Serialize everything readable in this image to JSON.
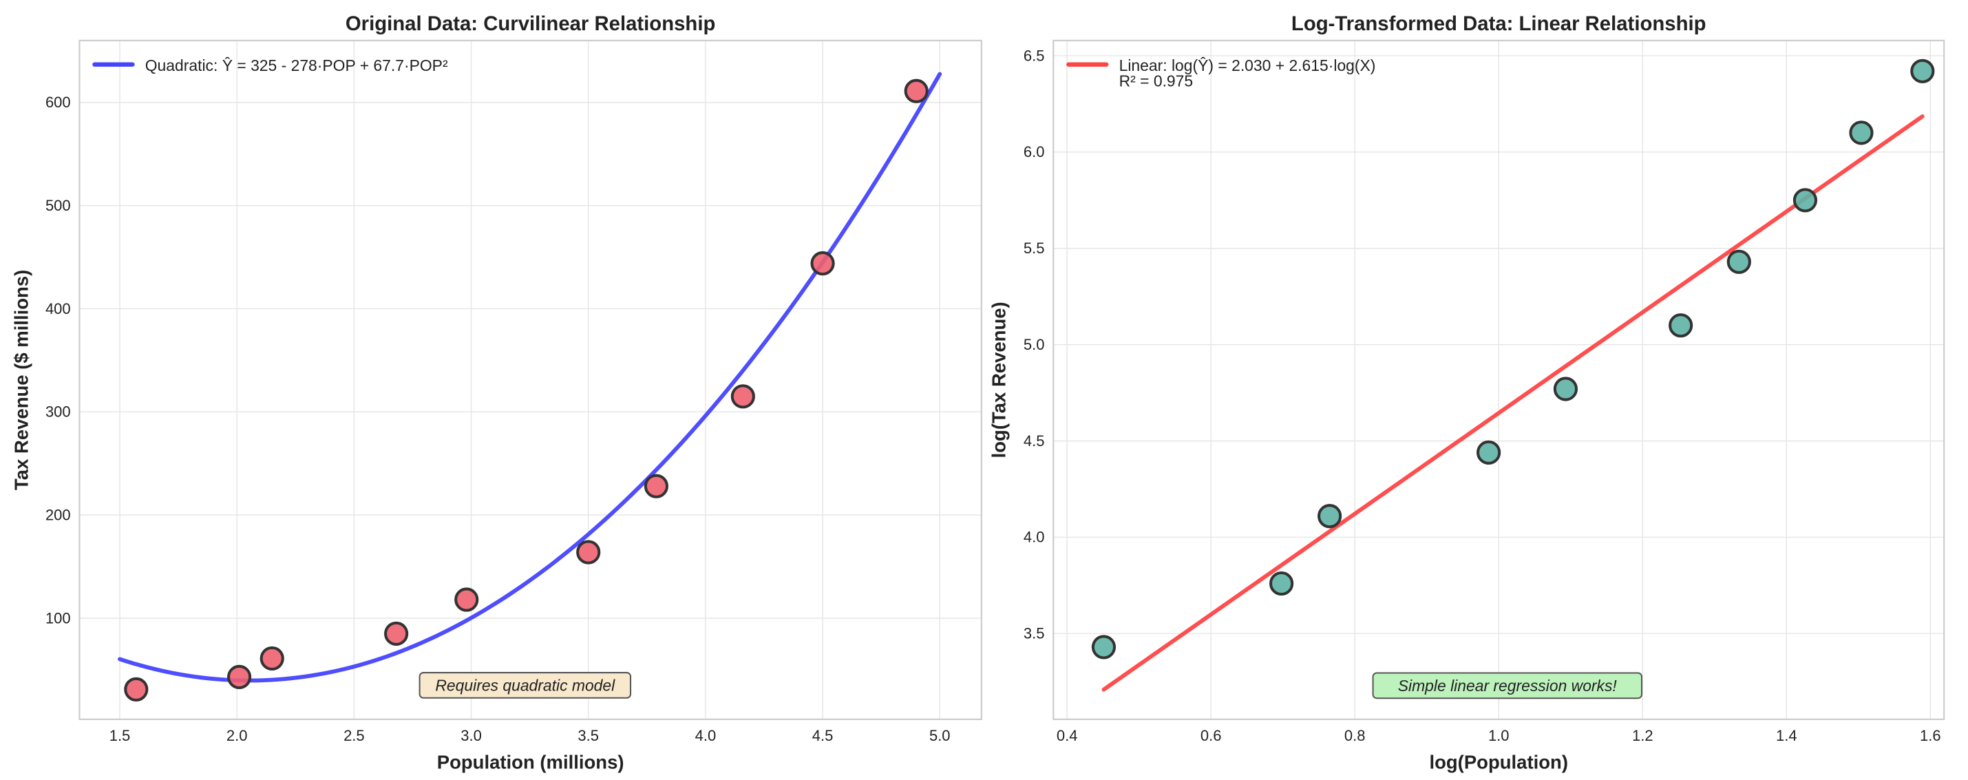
{
  "chart_data": [
    {
      "type": "scatter",
      "title": "Original Data: Curvilinear Relationship",
      "xlabel": "Population (millions)",
      "ylabel": "Tax Revenue ($ millions)",
      "xlim": [
        1.328,
        5.178
      ],
      "ylim": [
        2,
        660
      ],
      "xticks": [
        1.5,
        2.0,
        2.5,
        3.0,
        3.5,
        4.0,
        4.5,
        5.0
      ],
      "xtick_labels": [
        "1.5",
        "2.0",
        "2.5",
        "3.0",
        "3.5",
        "4.0",
        "4.5",
        "5.0"
      ],
      "yticks": [
        100,
        200,
        300,
        400,
        500,
        600
      ],
      "ytick_labels": [
        "100",
        "200",
        "300",
        "400",
        "500",
        "600"
      ],
      "grid": true,
      "points": {
        "x": [
          1.57,
          2.01,
          2.15,
          2.68,
          2.98,
          3.5,
          3.79,
          4.16,
          4.5,
          4.9
        ],
        "y": [
          31,
          43,
          61,
          85,
          118,
          164,
          228,
          315,
          444,
          611
        ],
        "color": "#f06070"
      },
      "fit": {
        "kind": "quadratic",
        "coefficients": [
          325,
          -278,
          67.7
        ],
        "x_range": [
          1.5,
          5.0
        ],
        "color": "#4444ff",
        "label": "Quadratic: Ŷ = 325 - 278·POP + 67.7·POP²"
      },
      "legend": {
        "placement": "top-left",
        "lines": [
          "Quadratic: Ŷ = 325 - 278·POP + 67.7·POP²"
        ]
      },
      "annotation": {
        "text": "Requires quadratic model",
        "color": "#f8e8cc",
        "placement": "bottom-center"
      }
    },
    {
      "type": "scatter",
      "title": "Log-Transformed Data: Linear Relationship",
      "xlabel": "log(Population)",
      "ylabel": "log(Tax Revenue)",
      "xlim": [
        0.381,
        1.619
      ],
      "ylim": [
        3.055,
        6.579
      ],
      "xticks": [
        0.4,
        0.6,
        0.8,
        1.0,
        1.2,
        1.4,
        1.6
      ],
      "xtick_labels": [
        "0.4",
        "0.6",
        "0.8",
        "1.0",
        "1.2",
        "1.4",
        "1.6"
      ],
      "yticks": [
        3.5,
        4.0,
        4.5,
        5.0,
        5.5,
        6.0,
        6.5
      ],
      "ytick_labels": [
        "3.5",
        "4.0",
        "4.5",
        "5.0",
        "5.5",
        "6.0",
        "6.5"
      ],
      "grid": true,
      "points": {
        "x": [
          0.451,
          0.698,
          0.765,
          0.986,
          1.093,
          1.253,
          1.334,
          1.426,
          1.504,
          1.589
        ],
        "y": [
          3.43,
          3.76,
          4.11,
          4.44,
          4.77,
          5.1,
          5.43,
          5.75,
          6.1,
          6.42
        ],
        "color": "#5fb3a5"
      },
      "fit": {
        "kind": "linear",
        "coefficients": [
          2.03,
          2.615
        ],
        "x_range": [
          0.451,
          1.589
        ],
        "color": "#ff4444",
        "label": "Linear: log(Ŷ) = 2.030 + 2.615·log(X)"
      },
      "legend": {
        "placement": "top-left",
        "lines": [
          "Linear: log(Ŷ) = 2.030 + 2.615·log(X)",
          "R² = 0.975"
        ]
      },
      "annotation": {
        "text": "Simple linear regression works!",
        "color": "#bdf2bd",
        "placement": "bottom-center"
      }
    }
  ]
}
